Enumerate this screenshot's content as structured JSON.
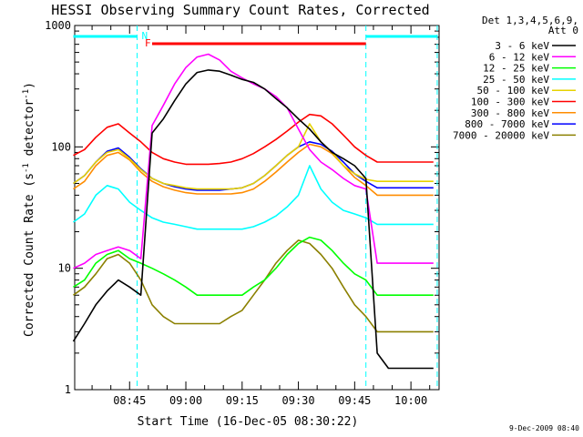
{
  "chart_data": {
    "type": "line",
    "title": "HESSI Observing Summary Count Rates, Corrected",
    "xlabel": "Start Time (16-Dec-05 08:30:22)",
    "ylabel": "Corrected Count Rate (s-1 detector-1)",
    "yscale": "log",
    "ylim": [
      1,
      1000
    ],
    "xlim": [
      "08:30:22",
      "10:07:30"
    ],
    "x_ticks": [
      "08:45",
      "09:00",
      "09:15",
      "09:30",
      "09:45",
      "10:00"
    ],
    "y_ticks": [
      "1",
      "10",
      "100",
      "1000"
    ],
    "legend_title": [
      "Det 1,3,4,5,6,9,",
      "Att 0"
    ],
    "legend_position": "right",
    "background": "#ffffff",
    "x": [
      "08:30",
      "08:33",
      "08:36",
      "08:39",
      "08:42",
      "08:45",
      "08:48",
      "08:51",
      "08:54",
      "08:57",
      "09:00",
      "09:03",
      "09:06",
      "09:09",
      "09:12",
      "09:15",
      "09:18",
      "09:21",
      "09:24",
      "09:27",
      "09:30",
      "09:33",
      "09:36",
      "09:39",
      "09:42",
      "09:45",
      "09:48",
      "09:51",
      "09:54",
      "09:57",
      "10:00",
      "10:03",
      "10:06"
    ],
    "series": [
      {
        "name": "3 - 6 keV",
        "color": "#000000",
        "values": [
          2.5,
          3.5,
          5,
          6.5,
          8,
          7,
          6,
          130,
          170,
          240,
          330,
          410,
          430,
          420,
          390,
          360,
          340,
          300,
          250,
          210,
          170,
          140,
          110,
          90,
          80,
          70,
          55,
          2,
          1.5,
          1.5,
          1.5,
          1.5,
          1.5
        ]
      },
      {
        "name": "6 - 12 keV",
        "color": "#ff00ff",
        "values": [
          10,
          11,
          13,
          14,
          15,
          14,
          12,
          150,
          220,
          330,
          450,
          550,
          580,
          520,
          420,
          370,
          330,
          300,
          260,
          210,
          140,
          95,
          75,
          65,
          55,
          48,
          45,
          11,
          11,
          11,
          11,
          11,
          11
        ]
      },
      {
        "name": "12 - 25 keV",
        "color": "#00ff00",
        "values": [
          7,
          8,
          11,
          13,
          14,
          12,
          11,
          10,
          9,
          8,
          7,
          6,
          6,
          6,
          6,
          6,
          7,
          8,
          10,
          13,
          16,
          18,
          17,
          14,
          11,
          9,
          8,
          6,
          6,
          6,
          6,
          6,
          6
        ]
      },
      {
        "name": "25 - 50 keV",
        "color": "#00ffff",
        "values": [
          24,
          28,
          40,
          48,
          45,
          35,
          30,
          26,
          24,
          23,
          22,
          21,
          21,
          21,
          21,
          21,
          22,
          24,
          27,
          32,
          40,
          70,
          45,
          35,
          30,
          28,
          26,
          23,
          23,
          23,
          23,
          23,
          23
        ]
      },
      {
        "name": "50 - 100 keV",
        "color": "#e6d200",
        "values": [
          50,
          58,
          75,
          90,
          95,
          80,
          65,
          55,
          50,
          48,
          46,
          45,
          45,
          45,
          45,
          46,
          50,
          58,
          70,
          85,
          100,
          155,
          110,
          90,
          70,
          60,
          54,
          52,
          52,
          52,
          52,
          52,
          52
        ]
      },
      {
        "name": "100 - 300 keV",
        "color": "#ff0000",
        "values": [
          85,
          95,
          120,
          145,
          155,
          130,
          110,
          90,
          80,
          75,
          72,
          72,
          72,
          73,
          75,
          80,
          88,
          100,
          115,
          135,
          160,
          185,
          180,
          155,
          125,
          100,
          85,
          75,
          75,
          75,
          75,
          75,
          75
        ]
      },
      {
        "name": "300 - 800 keV",
        "color": "#ff8c00",
        "values": [
          45,
          52,
          70,
          85,
          90,
          78,
          62,
          52,
          47,
          44,
          42,
          41,
          41,
          41,
          41,
          42,
          45,
          52,
          62,
          75,
          90,
          105,
          100,
          88,
          70,
          56,
          48,
          40,
          40,
          40,
          40,
          40,
          40
        ]
      },
      {
        "name": "800 - 7000 keV",
        "color": "#0000ff",
        "values": [
          50,
          58,
          75,
          92,
          98,
          82,
          66,
          55,
          50,
          47,
          45,
          44,
          44,
          44,
          45,
          46,
          50,
          58,
          70,
          85,
          100,
          110,
          105,
          92,
          75,
          60,
          52,
          46,
          46,
          46,
          46,
          46,
          46
        ]
      },
      {
        "name": "7000 - 20000 keV",
        "color": "#8b8000",
        "values": [
          6,
          7,
          9,
          12,
          13,
          11,
          8,
          5,
          4,
          3.5,
          3.5,
          3.5,
          3.5,
          3.5,
          4,
          4.5,
          6,
          8,
          11,
          14,
          17,
          16,
          13,
          10,
          7,
          5,
          4,
          3,
          3,
          3,
          3,
          3,
          3
        ]
      }
    ],
    "bars": [
      {
        "label": "F",
        "color": "#ff0000",
        "start": "08:51",
        "end": "09:48"
      },
      {
        "label": "N",
        "color": "#00ffff",
        "start": "08:47",
        "end": "08:47"
      }
    ],
    "day_bars_color": "#00ffff",
    "day_bars": [
      {
        "start": "08:30",
        "end": "08:47"
      },
      {
        "start": "09:48",
        "end": "10:07"
      }
    ],
    "night_markers": [
      "08:47",
      "09:48",
      "10:07"
    ]
  },
  "timestamp": "9-Dec-2009 08:40"
}
